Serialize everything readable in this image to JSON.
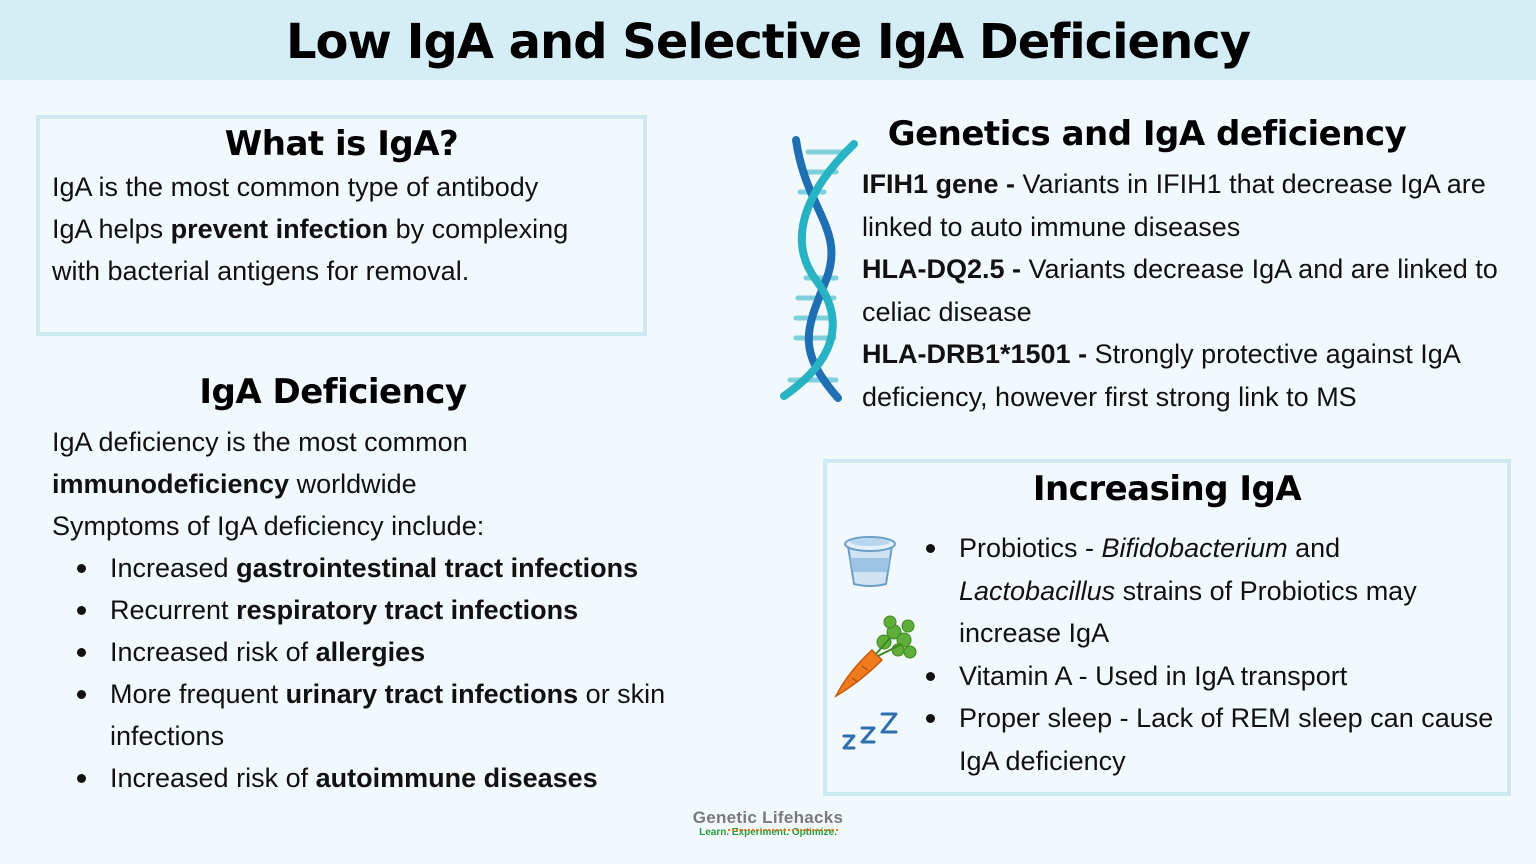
{
  "title": "Low IgA and Selective IgA Deficiency",
  "what": {
    "heading": "What is IgA?",
    "line1": "IgA is the most common type of antibody",
    "line2_a": "IgA helps ",
    "line2_b": "prevent infection",
    "line2_c": " by complexing",
    "line3": "with bacterial antigens for removal."
  },
  "deficiency": {
    "heading": "IgA Deficiency",
    "intro_a": "IgA deficiency is the most common",
    "intro_b": "immunodeficiency",
    "intro_c": " worldwide",
    "symptoms_label": "Symptoms of IgA deficiency include:",
    "items": [
      {
        "pre": "Increased ",
        "bold": "gastrointestinal tract infections",
        "post": ""
      },
      {
        "pre": "Recurrent ",
        "bold": "respiratory tract infections",
        "post": ""
      },
      {
        "pre": "Increased risk of ",
        "bold": "allergies",
        "post": ""
      },
      {
        "pre": "More frequent ",
        "bold": "urinary tract infections",
        "post": " or skin infections"
      },
      {
        "pre": "Increased risk of ",
        "bold": "autoimmune diseases",
        "post": ""
      }
    ]
  },
  "genetics": {
    "heading": "Genetics and IgA deficiency",
    "genes": [
      {
        "name": "IFIH1 gene -",
        "text": " Variants in IFIH1 that decrease IgA are linked to auto immune diseases"
      },
      {
        "name": "HLA-DQ2.5 -",
        "text": " Variants decrease IgA and are linked to celiac disease"
      },
      {
        "name": "HLA-DRB1*1501 -",
        "text": " Strongly protective against IgA deficiency, however first strong link to MS"
      }
    ]
  },
  "increasing": {
    "heading": "Increasing IgA",
    "item1_a": "Probiotics - ",
    "item1_b": "Bifidobacterium",
    "item1_c": " and ",
    "item1_d": "Lactobacillus",
    "item1_e": " strains of Probiotics may increase IgA",
    "item2": "Vitamin A - Used in IgA transport",
    "item3": "Proper sleep - Lack of REM sleep can cause IgA deficiency"
  },
  "icons": [
    "dna-icon",
    "yogurt-icon",
    "carrot-icon",
    "sleep-icon"
  ],
  "logo": {
    "name": "Genetic Lifehacks",
    "tagline": "Learn. Experiment. Optimize."
  },
  "colors": {
    "header_bg": "#d5edf5",
    "box_border": "#cdeaf3",
    "page_bg": "#f2f9fd",
    "dna_blue": "#1e6fb3",
    "dna_teal": "#27b3c4"
  }
}
